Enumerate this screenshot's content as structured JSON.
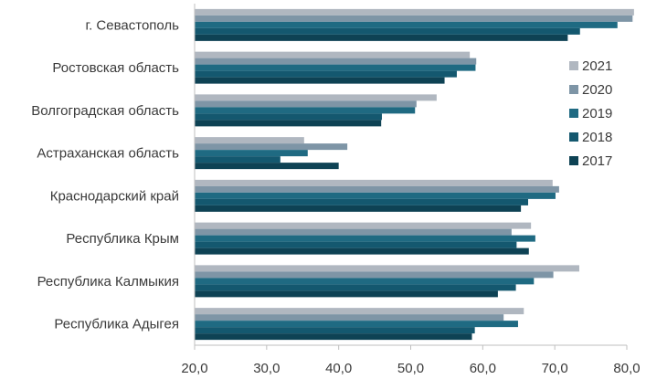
{
  "chart_data": {
    "type": "bar",
    "orientation": "horizontal",
    "title": "",
    "xlabel": "",
    "ylabel": "",
    "xlim": [
      20,
      80
    ],
    "xticks": [
      "20,0",
      "30,0",
      "40,0",
      "50,0",
      "60,0",
      "70,0",
      "80,0"
    ],
    "xtick_values": [
      20,
      30,
      40,
      50,
      60,
      70,
      80
    ],
    "grid": false,
    "legend_position": "right",
    "categories": [
      "г. Севастополь",
      "Ростовская область",
      "Волгоградская область",
      "Астраханская область",
      "Краснодарский край",
      "Республика Крым",
      "Республика Калмыкия",
      "Республика Адыгея"
    ],
    "series": [
      {
        "name": "2021",
        "color": "#b0b7c0",
        "values": [
          81.0,
          58.2,
          53.6,
          35.2,
          69.7,
          66.7,
          73.4,
          65.7
        ]
      },
      {
        "name": "2020",
        "color": "#7e95a6",
        "values": [
          80.8,
          59.1,
          50.8,
          41.2,
          70.6,
          64.0,
          69.8,
          62.9
        ]
      },
      {
        "name": "2019",
        "color": "#1f6a82",
        "values": [
          78.7,
          59.0,
          50.6,
          35.7,
          70.1,
          67.3,
          67.1,
          64.9
        ]
      },
      {
        "name": "2018",
        "color": "#14586f",
        "values": [
          73.5,
          56.4,
          46.0,
          31.9,
          66.3,
          64.7,
          64.6,
          58.9
        ]
      },
      {
        "name": "2017",
        "color": "#0e4254",
        "values": [
          71.8,
          54.7,
          45.9,
          40.0,
          65.3,
          66.4,
          62.1,
          58.5
        ]
      }
    ]
  }
}
